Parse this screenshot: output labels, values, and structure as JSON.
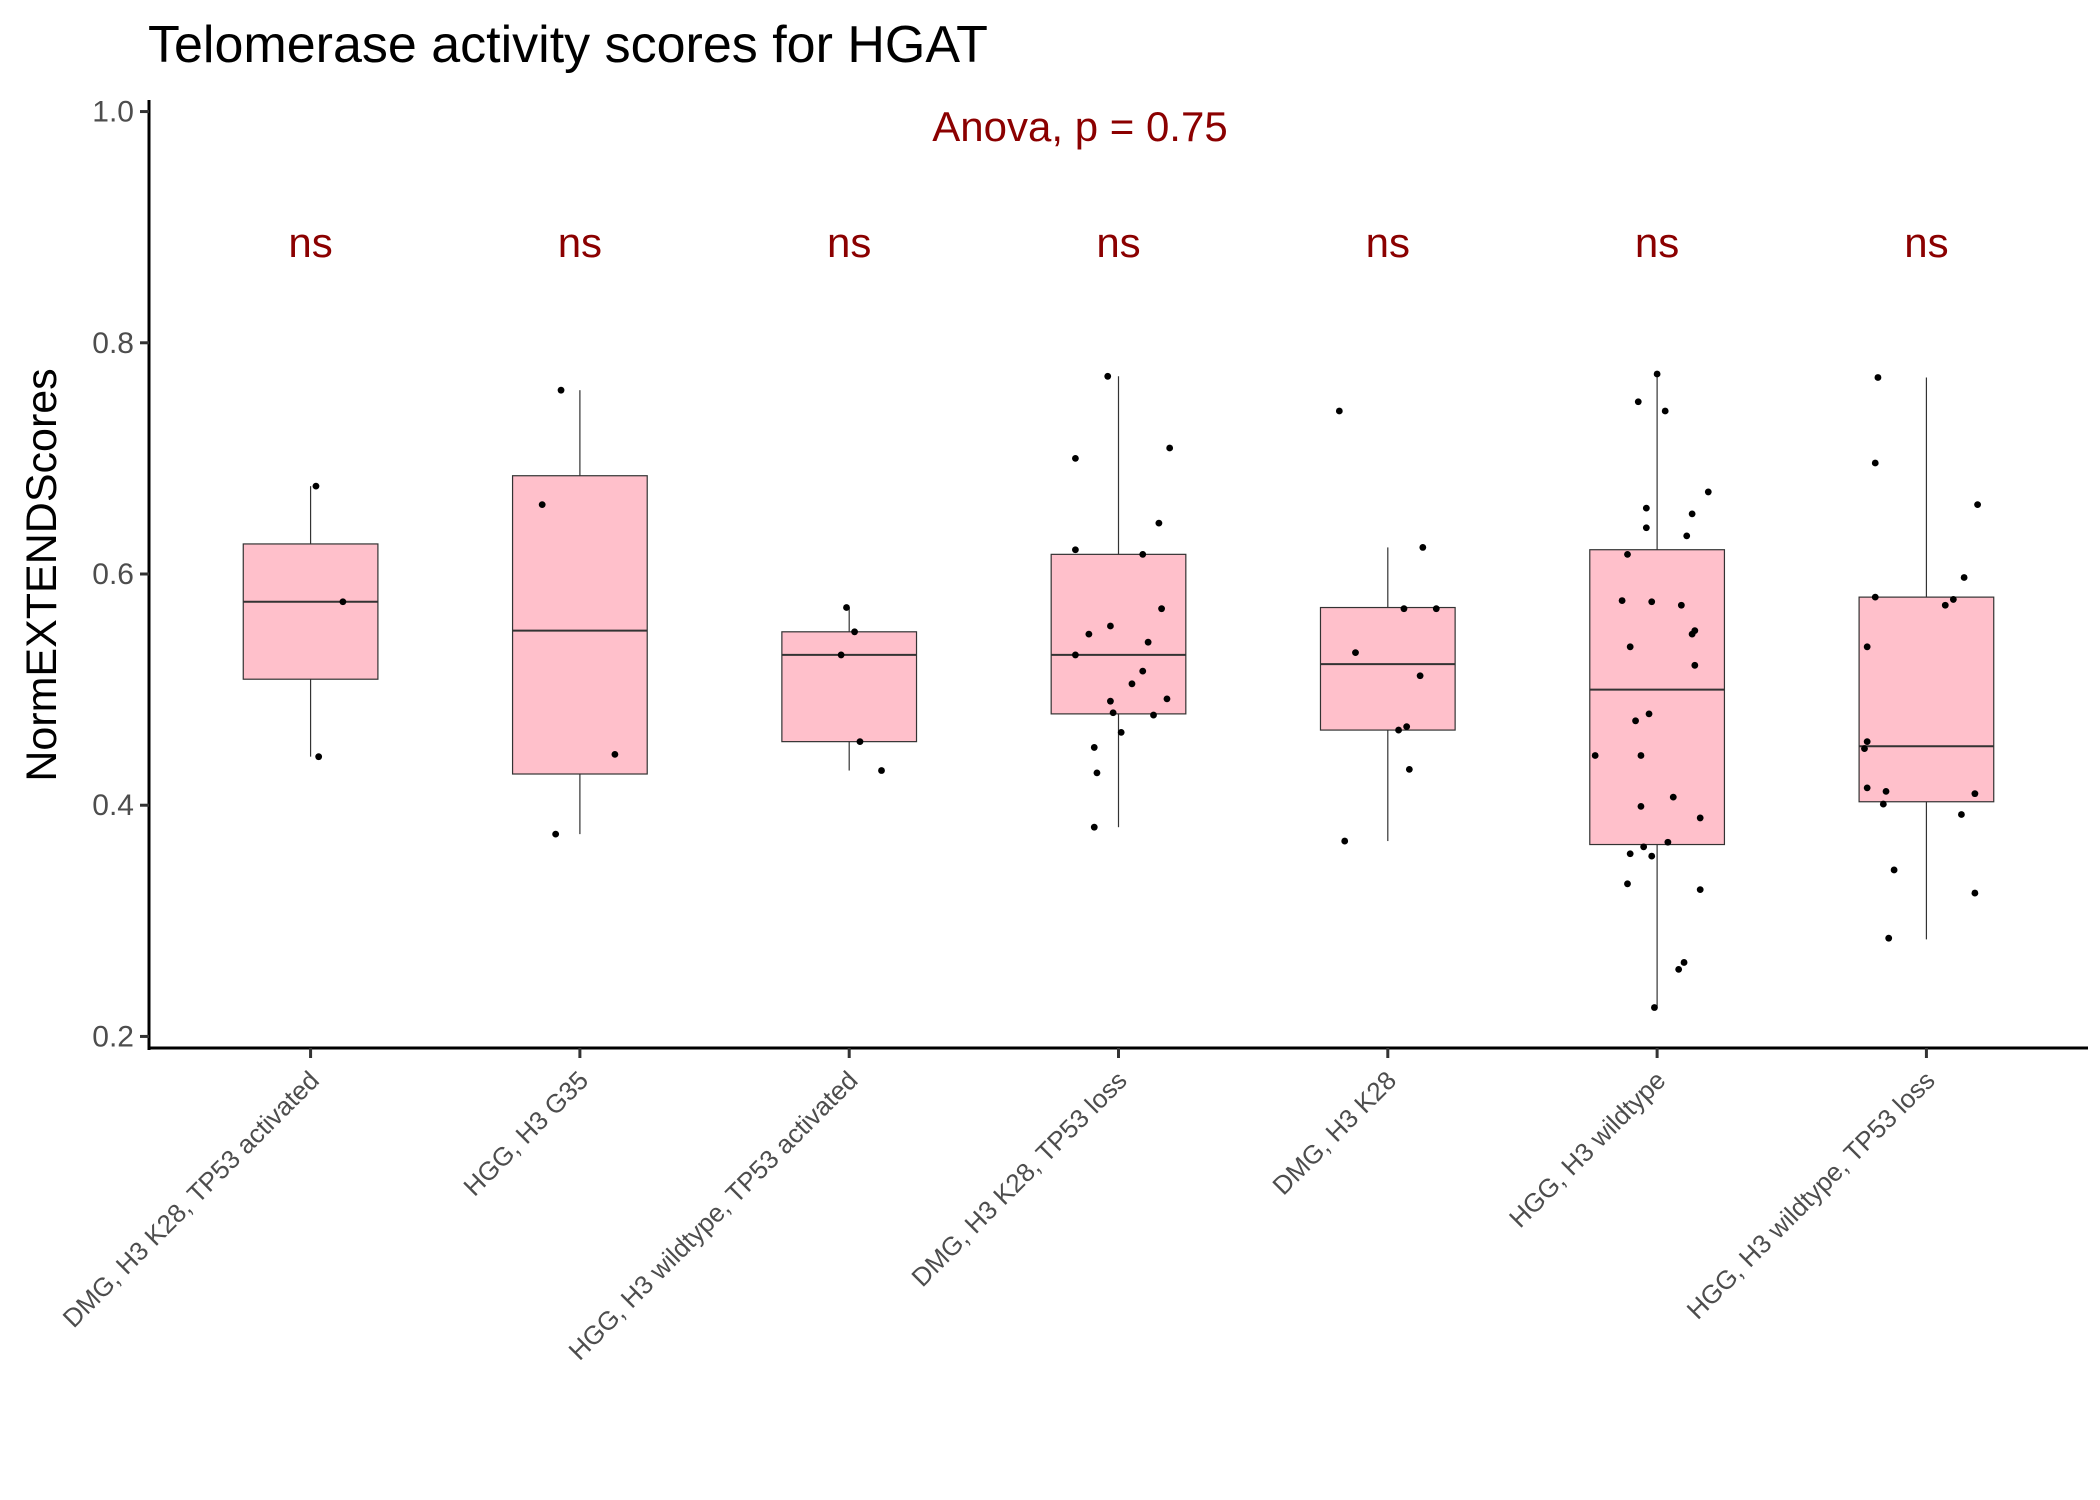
{
  "chart_data": {
    "type": "box",
    "title": "Telomerase activity scores for HGAT",
    "xlabel": "",
    "ylabel": "NormEXTENDScores",
    "ylim": [
      0.19,
      1.01
    ],
    "yticks": [
      0.2,
      0.4,
      0.6,
      0.8,
      1.0
    ],
    "ytick_labels": [
      "0.2",
      "0.4",
      "0.6",
      "0.8",
      "1.0"
    ],
    "grid": false,
    "box_color": "#ffc0cb",
    "annotation_color": "#8b0000",
    "overall_test": "Anova, p = 0.75",
    "categories": [
      "DMG, H3 K28, TP53 activated",
      "HGG, H3 G35",
      "HGG, H3 wildtype, TP53 activated",
      "DMG, H3 K28, TP53 loss",
      "DMG, H3 K28",
      "HGG, H3 wildtype",
      "HGG, H3 wildtype, TP53 loss"
    ],
    "significance": [
      "ns",
      "ns",
      "ns",
      "ns",
      "ns",
      "ns",
      "ns"
    ],
    "boxes": [
      {
        "q1": 0.509,
        "median": 0.576,
        "q3": 0.626,
        "whisker_low": 0.442,
        "whisker_high": 0.676
      },
      {
        "q1": 0.427,
        "median": 0.551,
        "q3": 0.685,
        "whisker_low": 0.375,
        "whisker_high": 0.759
      },
      {
        "q1": 0.455,
        "median": 0.53,
        "q3": 0.55,
        "whisker_low": 0.43,
        "whisker_high": 0.571
      },
      {
        "q1": 0.479,
        "median": 0.53,
        "q3": 0.617,
        "whisker_low": 0.381,
        "whisker_high": 0.771
      },
      {
        "q1": 0.465,
        "median": 0.522,
        "q3": 0.571,
        "whisker_low": 0.369,
        "whisker_high": 0.623
      },
      {
        "q1": 0.366,
        "median": 0.5,
        "q3": 0.621,
        "whisker_low": 0.225,
        "whisker_high": 0.773
      },
      {
        "q1": 0.403,
        "median": 0.451,
        "q3": 0.58,
        "whisker_low": 0.284,
        "whisker_high": 0.77
      }
    ],
    "points": [
      [
        [
          0.02,
          0.676
        ],
        [
          0.12,
          0.576
        ],
        [
          0.03,
          0.442
        ]
      ],
      [
        [
          -0.07,
          0.759
        ],
        [
          -0.14,
          0.66
        ],
        [
          0.13,
          0.444
        ],
        [
          -0.09,
          0.375
        ]
      ],
      [
        [
          -0.01,
          0.571
        ],
        [
          0.02,
          0.55
        ],
        [
          -0.03,
          0.53
        ],
        [
          0.04,
          0.455
        ],
        [
          0.12,
          0.43
        ]
      ],
      [
        [
          -0.04,
          0.771
        ],
        [
          0.19,
          0.709
        ],
        [
          -0.16,
          0.7
        ],
        [
          0.15,
          0.644
        ],
        [
          -0.16,
          0.621
        ],
        [
          0.09,
          0.617
        ],
        [
          0.16,
          0.57
        ],
        [
          -0.03,
          0.555
        ],
        [
          -0.11,
          0.548
        ],
        [
          0.11,
          0.541
        ],
        [
          -0.16,
          0.53
        ],
        [
          0.09,
          0.516
        ],
        [
          0.05,
          0.505
        ],
        [
          0.18,
          0.492
        ],
        [
          -0.03,
          0.49
        ],
        [
          -0.02,
          0.48
        ],
        [
          0.13,
          0.478
        ],
        [
          0.01,
          0.463
        ],
        [
          -0.09,
          0.45
        ],
        [
          -0.08,
          0.428
        ],
        [
          -0.09,
          0.381
        ]
      ],
      [
        [
          -0.18,
          0.741
        ],
        [
          0.13,
          0.623
        ],
        [
          0.18,
          0.57
        ],
        [
          0.06,
          0.57
        ],
        [
          -0.12,
          0.532
        ],
        [
          0.12,
          0.512
        ],
        [
          0.07,
          0.468
        ],
        [
          0.04,
          0.465
        ],
        [
          0.08,
          0.431
        ],
        [
          -0.16,
          0.369
        ]
      ],
      [
        [
          0.0,
          0.773
        ],
        [
          -0.07,
          0.749
        ],
        [
          0.03,
          0.741
        ],
        [
          0.19,
          0.671
        ],
        [
          0.13,
          0.652
        ],
        [
          -0.04,
          0.657
        ],
        [
          -0.04,
          0.64
        ],
        [
          0.11,
          0.633
        ],
        [
          -0.11,
          0.617
        ],
        [
          -0.13,
          0.577
        ],
        [
          -0.02,
          0.576
        ],
        [
          0.09,
          0.573
        ],
        [
          0.14,
          0.551
        ],
        [
          0.13,
          0.548
        ],
        [
          -0.1,
          0.537
        ],
        [
          0.14,
          0.521
        ],
        [
          -0.03,
          0.479
        ],
        [
          -0.08,
          0.473
        ],
        [
          -0.06,
          0.443
        ],
        [
          -0.23,
          0.443
        ],
        [
          0.06,
          0.407
        ],
        [
          0.16,
          0.389
        ],
        [
          -0.06,
          0.399
        ],
        [
          0.04,
          0.368
        ],
        [
          -0.05,
          0.364
        ],
        [
          -0.1,
          0.358
        ],
        [
          -0.02,
          0.356
        ],
        [
          -0.11,
          0.332
        ],
        [
          0.16,
          0.327
        ],
        [
          0.1,
          0.264
        ],
        [
          0.08,
          0.258
        ],
        [
          -0.01,
          0.225
        ]
      ],
      [
        [
          -0.18,
          0.77
        ],
        [
          -0.19,
          0.696
        ],
        [
          0.19,
          0.66
        ],
        [
          0.14,
          0.597
        ],
        [
          -0.19,
          0.58
        ],
        [
          0.1,
          0.578
        ],
        [
          0.07,
          0.573
        ],
        [
          -0.22,
          0.537
        ],
        [
          -0.22,
          0.455
        ],
        [
          -0.23,
          0.449
        ],
        [
          -0.22,
          0.415
        ],
        [
          -0.15,
          0.412
        ],
        [
          0.18,
          0.41
        ],
        [
          -0.16,
          0.401
        ],
        [
          0.13,
          0.392
        ],
        [
          -0.12,
          0.344
        ],
        [
          0.18,
          0.324
        ],
        [
          -0.14,
          0.285
        ]
      ]
    ]
  }
}
